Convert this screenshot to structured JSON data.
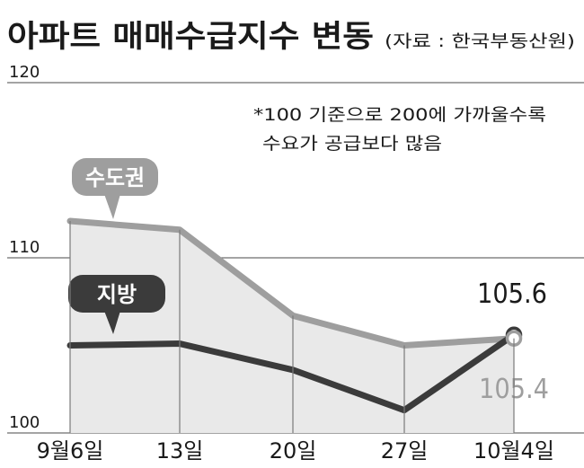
{
  "chart_data": {
    "type": "line",
    "title": "아파트 매매수급지수 변동",
    "source": "(자료 : 한국부동산원)",
    "note_lines": [
      "*100 기준으로 200에 가까울수록",
      "수요가 공급보다 많음"
    ],
    "categories": [
      "9월6일",
      "13일",
      "20일",
      "27일",
      "10월4일"
    ],
    "y_ticks": [
      "120",
      "110",
      "100"
    ],
    "ylim": [
      100,
      120
    ],
    "grid": "horizontal",
    "series": [
      {
        "name": "수도권",
        "values": [
          112.1,
          111.6,
          106.7,
          105.0,
          105.4
        ],
        "color": "#9e9e9e",
        "end_label": "105.4"
      },
      {
        "name": "지방",
        "values": [
          105.0,
          105.1,
          103.6,
          101.3,
          105.6
        ],
        "color": "#3b3b3b",
        "end_label": "105.6"
      }
    ],
    "area_color": "#e9e9e9",
    "colors": {
      "text": "#1f1f1f",
      "grid": "#6e6e6e",
      "axis": "#7a7a7a"
    }
  }
}
